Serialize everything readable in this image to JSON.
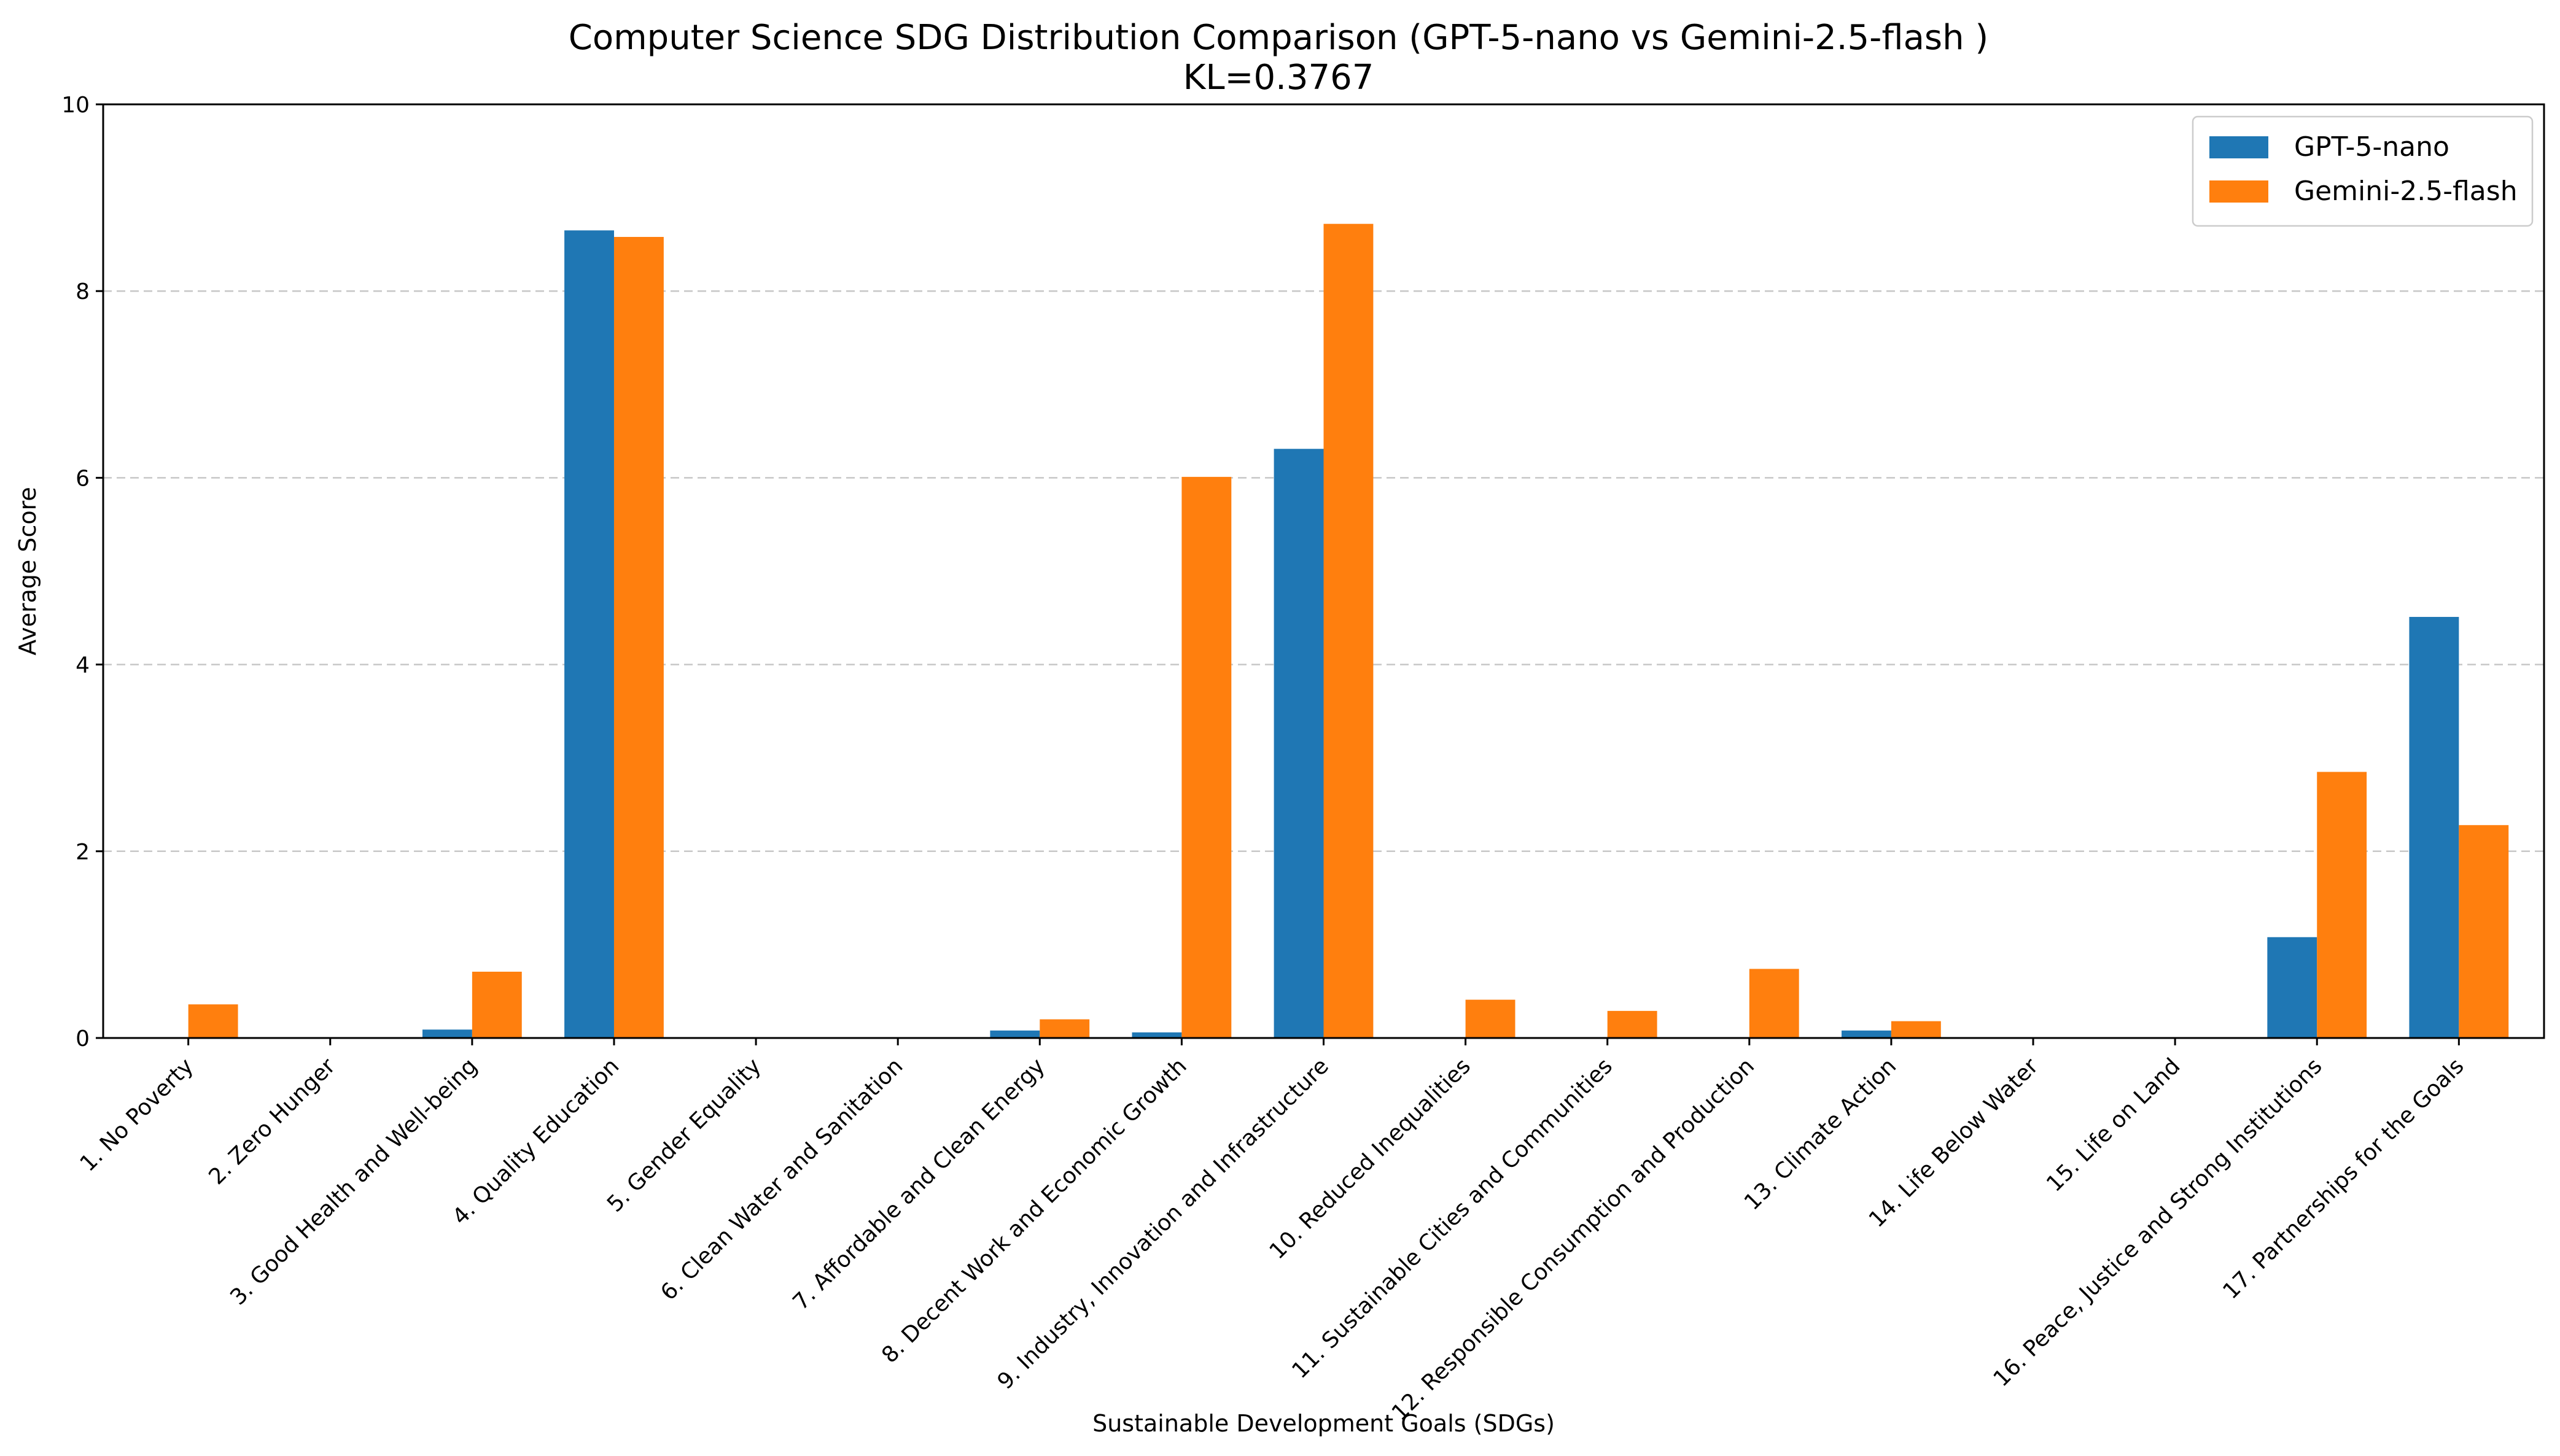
{
  "chart_data": {
    "type": "bar",
    "title": "Computer Science SDG Distribution Comparison (GPT-5-nano vs Gemini-2.5-flash )",
    "subtitle": "KL=0.3767",
    "xlabel": "Sustainable Development Goals (SDGs)",
    "ylabel": "Average Score",
    "ylim": [
      0,
      10
    ],
    "yticks": [
      "0",
      "2",
      "4",
      "6",
      "8",
      "10"
    ],
    "grid": "y-dashed",
    "legend_position": "top-right",
    "categories": [
      "1. No Poverty",
      "2. Zero Hunger",
      "3. Good Health and Well-being",
      "4. Quality Education",
      "5. Gender Equality",
      "6. Clean Water and Sanitation",
      "7. Affordable and Clean Energy",
      "8. Decent Work and Economic Growth",
      "9. Industry, Innovation and Infrastructure",
      "10. Reduced Inequalities",
      "11. Sustainable Cities and Communities",
      "12. Responsible Consumption and Production",
      "13. Climate Action",
      "14. Life Below Water",
      "15. Life on Land",
      "16. Peace, Justice and Strong Institutions",
      "17. Partnerships for the Goals"
    ],
    "series": [
      {
        "name": "GPT-5-nano",
        "color": "#1f77b4",
        "values": [
          0,
          0,
          0.09,
          8.65,
          0,
          0,
          0.08,
          0.06,
          6.31,
          0,
          0,
          0,
          0.08,
          0,
          0,
          1.08,
          4.51
        ]
      },
      {
        "name": "Gemini-2.5-flash",
        "color": "#ff7f0e",
        "values": [
          0.36,
          0,
          0.71,
          8.58,
          0,
          0,
          0.2,
          6.01,
          8.72,
          0.41,
          0.29,
          0.74,
          0.18,
          0,
          0,
          2.85,
          2.28
        ]
      }
    ]
  }
}
